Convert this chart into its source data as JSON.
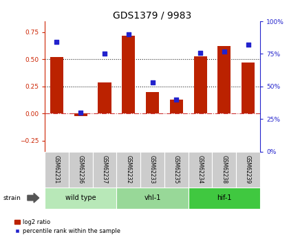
{
  "title": "GDS1379 / 9983",
  "samples": [
    "GSM62231",
    "GSM62236",
    "GSM62237",
    "GSM62232",
    "GSM62233",
    "GSM62235",
    "GSM62234",
    "GSM62238",
    "GSM62239"
  ],
  "log2_ratio": [
    0.52,
    -0.02,
    0.29,
    0.72,
    0.2,
    0.13,
    0.53,
    0.62,
    0.47
  ],
  "percentile_rank": [
    84,
    30,
    75,
    90,
    53,
    40,
    76,
    77,
    82
  ],
  "groups": [
    {
      "label": "wild type",
      "indices": [
        0,
        1,
        2
      ],
      "color": "#b8e8b8"
    },
    {
      "label": "vhl-1",
      "indices": [
        3,
        4,
        5
      ],
      "color": "#98d898"
    },
    {
      "label": "hif-1",
      "indices": [
        6,
        7,
        8
      ],
      "color": "#40c840"
    }
  ],
  "bar_color": "#bb2200",
  "dot_color": "#2222cc",
  "hline_color": "#cc3333",
  "dotted_color": "#222222",
  "left_axis_color": "#cc2200",
  "right_axis_color": "#2222cc",
  "ylim_left": [
    -0.35,
    0.85
  ],
  "ylim_right": [
    0,
    100
  ],
  "left_ticks": [
    -0.25,
    0,
    0.25,
    0.5,
    0.75
  ],
  "right_ticks": [
    0,
    25,
    50,
    75,
    100
  ],
  "hlines": [
    0.25,
    0.5
  ],
  "title_fontsize": 10,
  "tick_fontsize": 6.5,
  "label_fontsize": 5.5,
  "group_fontsize": 7
}
